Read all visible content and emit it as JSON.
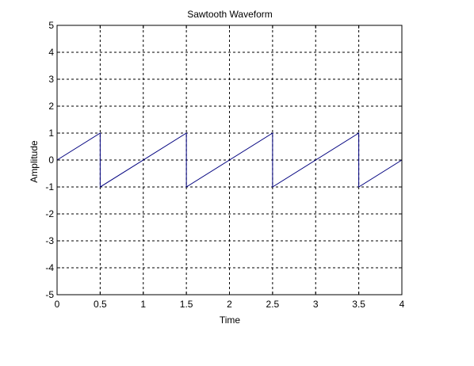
{
  "chart_data": {
    "type": "line",
    "title": "Sawtooth Waveform",
    "xlabel": "Time",
    "ylabel": "Amplitude",
    "xlim": [
      0,
      4
    ],
    "ylim": [
      -5,
      5
    ],
    "xticks": [
      0,
      0.5,
      1,
      1.5,
      2,
      2.5,
      3,
      3.5,
      4
    ],
    "yticks": [
      -5,
      -4,
      -3,
      -2,
      -1,
      0,
      1,
      2,
      3,
      4,
      5
    ],
    "xtick_labels": [
      "0",
      "0.5",
      "1",
      "1.5",
      "2",
      "2.5",
      "3",
      "3.5",
      "4"
    ],
    "ytick_labels": [
      "-5",
      "-4",
      "-3",
      "-2",
      "-1",
      "0",
      "1",
      "2",
      "3",
      "4",
      "5"
    ],
    "grid": true,
    "grid_style": "dashed",
    "line_color": "#00007f",
    "series": [
      {
        "x": [
          0,
          0.5,
          0.5,
          1.5,
          1.5,
          2.5,
          2.5,
          3.5,
          3.5,
          4
        ],
        "y": [
          0,
          1,
          -1,
          1,
          -1,
          1,
          -1,
          1,
          -1,
          0
        ]
      }
    ]
  }
}
